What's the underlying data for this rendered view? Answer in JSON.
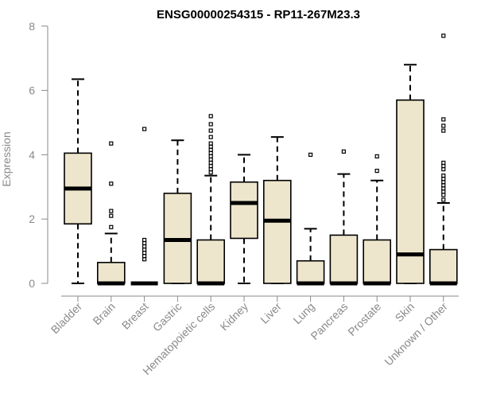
{
  "chart_data": {
    "type": "boxplot",
    "title": "ENSG00000254315 - RP11-267M23.3",
    "xlabel": "",
    "ylabel": "Expression",
    "ylim": [
      0,
      8
    ],
    "yticks": [
      "0",
      "2",
      "4",
      "6",
      "8"
    ],
    "grid": false,
    "colors": {
      "box_fill": "#ede6cc",
      "stroke": "#000000",
      "axis": "#8a8a8a"
    },
    "categories": [
      "Bladder",
      "Brain",
      "Breast",
      "Gastric",
      "Hematopoietic cells",
      "Kidney",
      "Liver",
      "Lung",
      "Pancreas",
      "Prostate",
      "Skin",
      "Unknown / Other"
    ],
    "boxes": [
      {
        "min": 0,
        "q1": 1.85,
        "median": 2.95,
        "q3": 4.05,
        "max": 6.35,
        "outliers": []
      },
      {
        "min": 0,
        "q1": 0,
        "median": 0,
        "q3": 0.65,
        "max": 1.55,
        "outliers": [
          1.75,
          2.1,
          2.25,
          3.1,
          4.35
        ]
      },
      {
        "min": 0,
        "q1": 0,
        "median": 0,
        "q3": 0,
        "max": 0,
        "outliers": [
          0.75,
          0.85,
          0.95,
          1.05,
          1.15,
          1.25,
          1.35,
          4.8
        ]
      },
      {
        "min": 0,
        "q1": 0,
        "median": 1.35,
        "q3": 2.8,
        "max": 4.45,
        "outliers": []
      },
      {
        "min": 0,
        "q1": 0,
        "median": 0,
        "q3": 1.35,
        "max": 3.35,
        "outliers": [
          3.45,
          3.55,
          3.65,
          3.75,
          3.85,
          3.95,
          4.05,
          4.15,
          4.25,
          4.35,
          4.55,
          4.75,
          4.95,
          5.2
        ]
      },
      {
        "min": 0,
        "q1": 1.4,
        "median": 2.5,
        "q3": 3.15,
        "max": 4.0,
        "outliers": []
      },
      {
        "min": 0,
        "q1": 0,
        "median": 1.95,
        "q3": 3.2,
        "max": 4.55,
        "outliers": []
      },
      {
        "min": 0,
        "q1": 0,
        "median": 0,
        "q3": 0.7,
        "max": 1.7,
        "outliers": [
          4.0
        ]
      },
      {
        "min": 0,
        "q1": 0,
        "median": 0,
        "q3": 1.5,
        "max": 3.4,
        "outliers": [
          4.1
        ]
      },
      {
        "min": 0,
        "q1": 0,
        "median": 0,
        "q3": 1.35,
        "max": 3.2,
        "outliers": [
          3.5,
          3.95
        ]
      },
      {
        "min": 0,
        "q1": 0,
        "median": 0.9,
        "q3": 5.7,
        "max": 6.8,
        "outliers": []
      },
      {
        "min": 0,
        "q1": 0,
        "median": 0,
        "q3": 1.05,
        "max": 2.5,
        "outliers": [
          2.6,
          2.75,
          2.85,
          2.95,
          3.05,
          3.15,
          3.25,
          3.35,
          3.55,
          3.65,
          3.75,
          4.75,
          4.9,
          5.1,
          7.7
        ]
      }
    ]
  }
}
